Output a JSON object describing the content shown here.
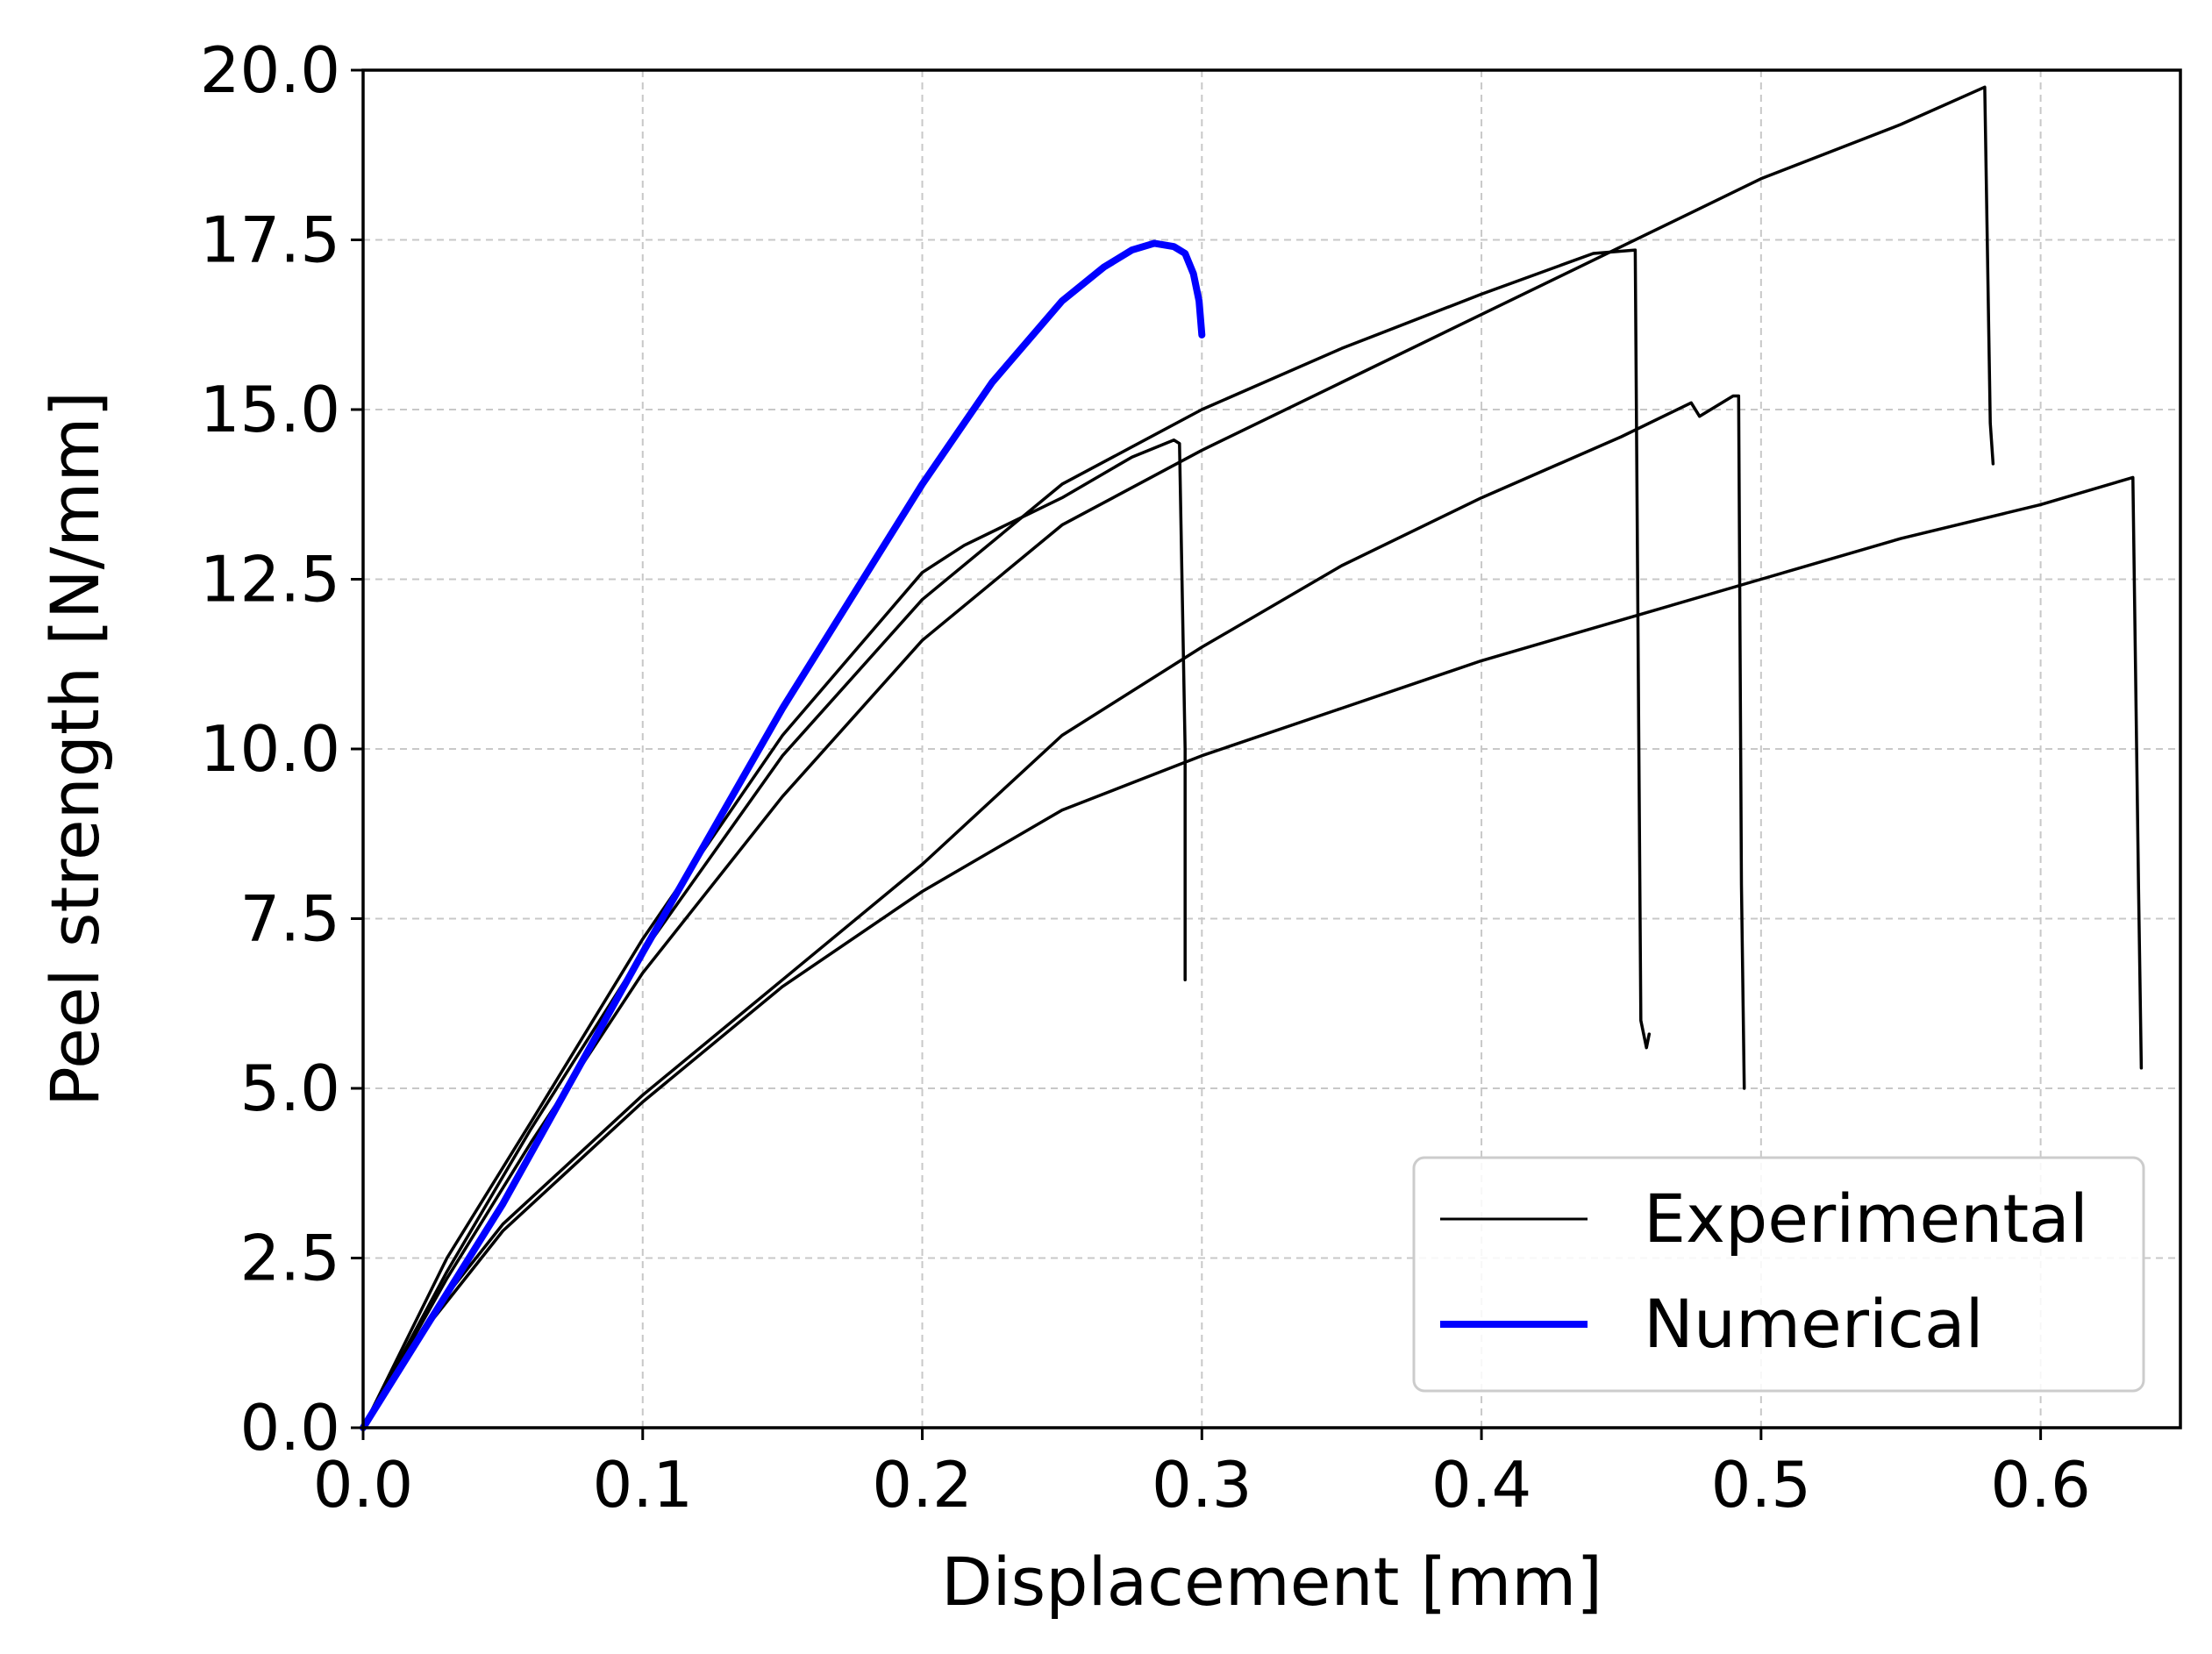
{
  "chart_data": {
    "type": "line",
    "title": "",
    "xlabel": "Displacement [mm]",
    "ylabel": "Peel strength [N/mm]",
    "xlim": [
      0.0,
      0.65
    ],
    "ylim": [
      0.0,
      20.0
    ],
    "xticks": [
      0.0,
      0.1,
      0.2,
      0.3,
      0.4,
      0.5,
      0.6
    ],
    "xtick_labels": [
      "0.0",
      "0.1",
      "0.2",
      "0.3",
      "0.4",
      "0.5",
      "0.6"
    ],
    "yticks": [
      0.0,
      2.5,
      5.0,
      7.5,
      10.0,
      12.5,
      15.0,
      17.5,
      20.0
    ],
    "ytick_labels": [
      "0.0",
      "2.5",
      "5.0",
      "7.5",
      "10.0",
      "12.5",
      "15.0",
      "17.5",
      "20.0"
    ],
    "grid": true,
    "legend_position": "bottom-right",
    "legend": [
      {
        "label": "Experimental",
        "color": "#000000"
      },
      {
        "label": "Numerical",
        "color": "#0000ff"
      }
    ],
    "series": [
      {
        "name": "Experimental",
        "color": "#000000",
        "x": [
          0,
          0.03,
          0.06,
          0.1,
          0.15,
          0.2,
          0.215,
          0.25,
          0.275,
          0.29,
          0.292,
          0.294,
          0.294
        ],
        "y": [
          0,
          2.5,
          4.5,
          7.2,
          10.2,
          12.6,
          13.0,
          13.7,
          14.3,
          14.55,
          14.5,
          10.0,
          6.6
        ]
      },
      {
        "name": "Experimental",
        "color": "#000000",
        "x": [
          0,
          0.03,
          0.06,
          0.1,
          0.15,
          0.2,
          0.25,
          0.3,
          0.35,
          0.4,
          0.44,
          0.455,
          0.457,
          0.459,
          0.46
        ],
        "y": [
          0,
          2.3,
          4.4,
          7.0,
          9.9,
          12.2,
          13.9,
          15.0,
          15.9,
          16.7,
          17.3,
          17.35,
          6.0,
          5.6,
          5.8
        ]
      },
      {
        "name": "Experimental",
        "color": "#000000",
        "x": [
          0,
          0.03,
          0.06,
          0.1,
          0.15,
          0.2,
          0.25,
          0.3,
          0.35,
          0.4,
          0.45,
          0.48,
          0.5,
          0.55,
          0.58,
          0.582,
          0.583
        ],
        "y": [
          0,
          2.2,
          4.2,
          6.7,
          9.3,
          11.6,
          13.3,
          14.4,
          15.4,
          16.4,
          17.4,
          18.0,
          18.4,
          19.2,
          19.75,
          14.8,
          14.2
        ]
      },
      {
        "name": "Experimental",
        "color": "#000000",
        "x": [
          0,
          0.025,
          0.05,
          0.1,
          0.15,
          0.2,
          0.25,
          0.3,
          0.35,
          0.4,
          0.45,
          0.475,
          0.478,
          0.49,
          0.492,
          0.493,
          0.494
        ],
        "y": [
          0,
          1.7,
          3.0,
          4.9,
          6.6,
          8.3,
          10.2,
          11.5,
          12.7,
          13.7,
          14.6,
          15.1,
          14.9,
          15.2,
          15.2,
          8.0,
          5.0
        ]
      },
      {
        "name": "Experimental",
        "color": "#000000",
        "x": [
          0,
          0.025,
          0.05,
          0.1,
          0.15,
          0.2,
          0.25,
          0.3,
          0.35,
          0.4,
          0.45,
          0.5,
          0.55,
          0.6,
          0.633,
          0.635,
          0.636
        ],
        "y": [
          0,
          1.6,
          2.9,
          4.8,
          6.5,
          7.9,
          9.1,
          9.9,
          10.6,
          11.3,
          11.9,
          12.5,
          13.1,
          13.6,
          14.0,
          8.0,
          5.3
        ]
      },
      {
        "name": "Numerical",
        "color": "#0000ff",
        "x": [
          0,
          0.05,
          0.1,
          0.15,
          0.2,
          0.225,
          0.25,
          0.265,
          0.275,
          0.283,
          0.29,
          0.294,
          0.297,
          0.299,
          0.3
        ],
        "y": [
          0,
          3.3,
          7.0,
          10.6,
          13.9,
          15.4,
          16.6,
          17.1,
          17.35,
          17.45,
          17.4,
          17.3,
          17.0,
          16.6,
          16.1
        ]
      }
    ]
  }
}
